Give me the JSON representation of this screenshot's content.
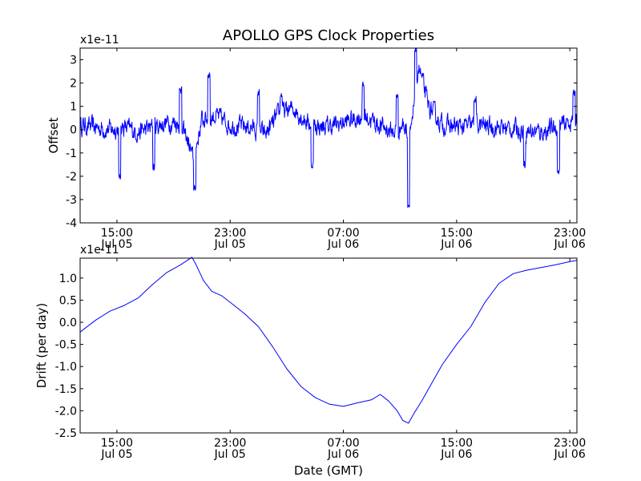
{
  "title": "APOLLO GPS Clock Properties",
  "xlabel": "Date (GMT)",
  "x_ticks": [
    {
      "t": 15,
      "line1": "15:00",
      "line2": "Jul 05"
    },
    {
      "t": 23,
      "line1": "23:00",
      "line2": "Jul 05"
    },
    {
      "t": 31,
      "line1": "07:00",
      "line2": "Jul 06"
    },
    {
      "t": 39,
      "line1": "15:00",
      "line2": "Jul 06"
    },
    {
      "t": 47,
      "line1": "23:00",
      "line2": "Jul 06"
    }
  ],
  "chart_data": [
    {
      "type": "line",
      "name": "offset",
      "ylabel": "Offset",
      "exponent": "x1e-11",
      "xlim_hours_since_jul05_0000": [
        12.4,
        47.5
      ],
      "ylim": [
        -4,
        3.5
      ],
      "yticks": [
        -4,
        -3,
        -2,
        -1,
        0,
        1,
        2,
        3
      ],
      "ytick_labels": [
        "-4",
        "-3",
        "-2",
        "-1",
        "0",
        "1",
        "2",
        "3"
      ],
      "color": "#0000ff",
      "trend": {
        "x": [
          12.4,
          13.5,
          14.5,
          15.5,
          16.5,
          17.5,
          18.5,
          19.3,
          19.9,
          20.4,
          21,
          22,
          23,
          24.5,
          25.5,
          26.5,
          27.5,
          28.5,
          29.5,
          30.5,
          31.5,
          32.5,
          33.5,
          34.5,
          35.2,
          35.8,
          36.3,
          37,
          38,
          39,
          40.5,
          42,
          43.5,
          45,
          46.5,
          47.5
        ],
        "y": [
          0.2,
          0.1,
          0.0,
          0.1,
          -0.1,
          0.1,
          0.3,
          0.3,
          -0.3,
          -1.3,
          0.4,
          0.6,
          0.2,
          0.1,
          -0.2,
          0.7,
          0.9,
          0.3,
          0.1,
          0.2,
          0.4,
          0.6,
          0.2,
          -0.1,
          0.2,
          -0.2,
          2.8,
          1.0,
          0.2,
          0.1,
          0.2,
          0.1,
          0.0,
          -0.1,
          0.2,
          0.5
        ]
      },
      "spikes": [
        {
          "x": 15.2,
          "y": -2.0
        },
        {
          "x": 17.6,
          "y": -1.6
        },
        {
          "x": 19.5,
          "y": 1.7
        },
        {
          "x": 20.5,
          "y": -2.5
        },
        {
          "x": 21.5,
          "y": 2.3
        },
        {
          "x": 25.0,
          "y": 1.6
        },
        {
          "x": 26.6,
          "y": 1.5
        },
        {
          "x": 28.8,
          "y": -1.5
        },
        {
          "x": 32.4,
          "y": 1.9
        },
        {
          "x": 34.8,
          "y": 1.4
        },
        {
          "x": 35.6,
          "y": -3.3
        },
        {
          "x": 36.1,
          "y": 3.4
        },
        {
          "x": 40.3,
          "y": 1.3
        },
        {
          "x": 43.8,
          "y": -1.5
        },
        {
          "x": 46.2,
          "y": -1.8
        },
        {
          "x": 47.3,
          "y": 1.6
        }
      ],
      "noise_amplitude": 0.45
    },
    {
      "type": "line",
      "name": "drift",
      "ylabel": "Drift (per day)",
      "exponent": "x1e-11",
      "xlim_hours_since_jul05_0000": [
        12.4,
        47.5
      ],
      "ylim": [
        -2.5,
        1.45
      ],
      "yticks": [
        -2.5,
        -2.0,
        -1.5,
        -1.0,
        -0.5,
        0.0,
        0.5,
        1.0
      ],
      "ytick_labels": [
        "-2.5",
        "-2.0",
        "-1.5",
        "-1.0",
        "-0.5",
        "0.0",
        "0.5",
        "1.0"
      ],
      "color": "#0000ff",
      "x": [
        12.4,
        13.5,
        14.5,
        15.5,
        16.5,
        17.5,
        18.5,
        19.5,
        20.3,
        20.6,
        21.1,
        21.7,
        22.4,
        23.2,
        24,
        25,
        26,
        27,
        28,
        29,
        30,
        31,
        32,
        33,
        33.6,
        34.2,
        34.8,
        35.2,
        35.6,
        36,
        36.5,
        37.2,
        38,
        39,
        40,
        41,
        42,
        43,
        44,
        45,
        46,
        47,
        47.5
      ],
      "y": [
        -0.22,
        0.05,
        0.25,
        0.38,
        0.55,
        0.85,
        1.12,
        1.3,
        1.47,
        1.3,
        0.95,
        0.7,
        0.6,
        0.4,
        0.2,
        -0.1,
        -0.55,
        -1.05,
        -1.45,
        -1.7,
        -1.85,
        -1.9,
        -1.82,
        -1.75,
        -1.63,
        -1.78,
        -2.0,
        -2.22,
        -2.28,
        -2.05,
        -1.8,
        -1.4,
        -0.95,
        -0.5,
        -0.1,
        0.45,
        0.88,
        1.1,
        1.18,
        1.24,
        1.3,
        1.37,
        1.4
      ]
    }
  ]
}
